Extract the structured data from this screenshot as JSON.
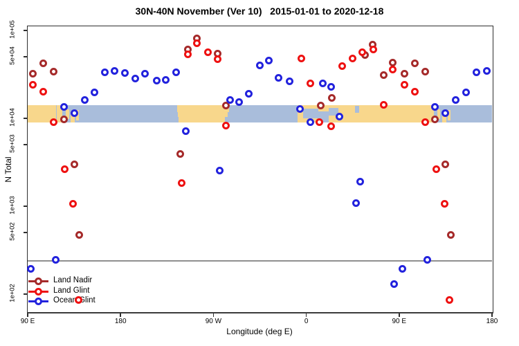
{
  "title": "30N-40N November (Ver 10)   2015-01-01 to 2020-12-18",
  "legend": {
    "items": [
      {
        "label": "Land Nadir",
        "series": "land_nadir"
      },
      {
        "label": "Land Glint",
        "series": "land_glint"
      },
      {
        "label": "Ocean Glint",
        "series": "ocean_glint"
      }
    ]
  },
  "chart_data": {
    "type": "scatter",
    "title": "30N-40N November (Ver 10)   2015-01-01 to 2020-12-18",
    "xlabel": "Longitude (deg E)",
    "ylabel": "N Total",
    "x_axis": {
      "min": 90,
      "max": 540,
      "note": "longitude wraps eastward from 90E: 90E to 180 to 90W to 0 to 90E to 180; data from 90E-180 repeated at both ends",
      "ticks": [
        {
          "lon": 90,
          "label": "90 E"
        },
        {
          "lon": 180,
          "label": "180"
        },
        {
          "lon": 270,
          "label": "90 W"
        },
        {
          "lon": 360,
          "label": "0"
        },
        {
          "lon": 450,
          "label": "90 E"
        },
        {
          "lon": 540,
          "label": "180"
        }
      ]
    },
    "y_axis": {
      "scale": "log",
      "min": 60,
      "max": 112000,
      "ticks": [
        {
          "value": 100000,
          "label": "1e+05"
        },
        {
          "value": 50000,
          "label": "5e+04"
        },
        {
          "value": 10000,
          "label": "1e+04"
        },
        {
          "value": 5000,
          "label": "5e+03"
        },
        {
          "value": 1000,
          "label": "1e+03"
        },
        {
          "value": 500,
          "label": "5e+02"
        },
        {
          "value": 100,
          "label": "1e+02"
        }
      ]
    },
    "threshold_line": {
      "value": 244,
      "color": "#8f8f8f"
    },
    "map_band": {
      "description": "world map strip for 30N-40N: tan=land, blue=ocean",
      "land_color": "#F8D78C",
      "ocean_color": "#A9BDDB",
      "value_top": 14100,
      "value_bottom": 9000,
      "land_segments": [
        {
          "from": 90,
          "to": 117.5,
          "top": 0,
          "bottom": 1
        },
        {
          "from": 118.5,
          "to": 123.5,
          "top": 0,
          "bottom": 1
        },
        {
          "from": 127,
          "to": 130,
          "top": 0.25,
          "bottom": 0.8
        },
        {
          "from": 131.5,
          "to": 135.5,
          "top": 0.35,
          "bottom": 1
        },
        {
          "from": 137,
          "to": 139.5,
          "top": 0.3,
          "bottom": 0.9
        },
        {
          "from": 235,
          "to": 285,
          "top": 0,
          "bottom": 0.4
        },
        {
          "from": 235.5,
          "to": 284,
          "top": 0.4,
          "bottom": 0.7
        },
        {
          "from": 236.5,
          "to": 281,
          "top": 0.7,
          "bottom": 1
        },
        {
          "from": 351.5,
          "to": 478,
          "top": 0,
          "bottom": 1
        },
        {
          "from": 478.5,
          "to": 484,
          "top": 0,
          "bottom": 1
        },
        {
          "from": 487,
          "to": 490,
          "top": 0.25,
          "bottom": 0.8
        },
        {
          "from": 491.5,
          "to": 495.5,
          "top": 0.35,
          "bottom": 1
        },
        {
          "from": 497,
          "to": 499.5,
          "top": 0.3,
          "bottom": 0.9
        }
      ],
      "ocean_patches": [
        {
          "from": 357,
          "to": 372,
          "top": 0.2,
          "bottom": 0.75
        },
        {
          "from": 372,
          "to": 382,
          "top": 0.35,
          "bottom": 1
        },
        {
          "from": 382,
          "to": 391,
          "top": 0.15,
          "bottom": 0.6
        },
        {
          "from": 407,
          "to": 411,
          "top": 0.05,
          "bottom": 0.45
        }
      ]
    },
    "series": [
      {
        "name": "Land Nadir",
        "key": "land_nadir",
        "color": "#A52A2A",
        "points": [
          [
            95,
            32100
          ],
          [
            105,
            42100
          ],
          [
            115,
            34100
          ],
          [
            125,
            9770
          ],
          [
            135,
            3010
          ],
          [
            140,
            475
          ],
          [
            238,
            3920
          ],
          [
            245,
            60500
          ],
          [
            254,
            81800
          ],
          [
            274,
            54700
          ],
          [
            282,
            14000
          ],
          [
            374,
            14000
          ],
          [
            385,
            17000
          ],
          [
            417,
            53000
          ],
          [
            424,
            69200
          ],
          [
            435,
            31100
          ],
          [
            444,
            43400
          ],
          [
            455,
            32100
          ],
          [
            465,
            42100
          ],
          [
            475,
            34100
          ],
          [
            485,
            9770
          ],
          [
            495,
            3010
          ],
          [
            500,
            475
          ]
        ]
      },
      {
        "name": "Land Glint",
        "key": "land_glint",
        "color": "#EE1111",
        "points": [
          [
            95,
            24200
          ],
          [
            105,
            20100
          ],
          [
            115,
            9020
          ],
          [
            126,
            2660
          ],
          [
            134,
            1070
          ],
          [
            139,
            85
          ],
          [
            239,
            1850
          ],
          [
            245,
            53700
          ],
          [
            254,
            71300
          ],
          [
            265,
            57000
          ],
          [
            274,
            47500
          ],
          [
            282,
            8240
          ],
          [
            355,
            48200
          ],
          [
            364,
            24800
          ],
          [
            373,
            9020
          ],
          [
            384,
            8100
          ],
          [
            395,
            39200
          ],
          [
            405,
            48200
          ],
          [
            414,
            56000
          ],
          [
            425,
            60500
          ],
          [
            435,
            14200
          ],
          [
            444,
            35700
          ],
          [
            455,
            24200
          ],
          [
            465,
            20100
          ],
          [
            475,
            9020
          ],
          [
            486,
            2660
          ],
          [
            494,
            1070
          ],
          [
            499,
            85
          ]
        ]
      },
      {
        "name": "Ocean Glint",
        "key": "ocean_glint",
        "color": "#2222DD",
        "points": [
          [
            93,
            195
          ],
          [
            117,
            244
          ],
          [
            125,
            13400
          ],
          [
            135,
            11500
          ],
          [
            145,
            16300
          ],
          [
            155,
            19800
          ],
          [
            165,
            33100
          ],
          [
            174,
            34800
          ],
          [
            184,
            32700
          ],
          [
            194,
            28400
          ],
          [
            204,
            32100
          ],
          [
            215,
            27100
          ],
          [
            224,
            27600
          ],
          [
            234,
            33100
          ],
          [
            243,
            7210
          ],
          [
            276,
            2540
          ],
          [
            286,
            16200
          ],
          [
            295,
            15400
          ],
          [
            304,
            18900
          ],
          [
            315,
            40200
          ],
          [
            324,
            45600
          ],
          [
            333,
            29000
          ],
          [
            344,
            26300
          ],
          [
            354,
            12700
          ],
          [
            364,
            9020
          ],
          [
            376,
            24800
          ],
          [
            384,
            23000
          ],
          [
            392,
            10500
          ],
          [
            408,
            1090
          ],
          [
            412,
            1900
          ],
          [
            445,
            131
          ],
          [
            453,
            195
          ],
          [
            477,
            244
          ],
          [
            485,
            13400
          ],
          [
            495,
            11500
          ],
          [
            505,
            16300
          ],
          [
            515,
            19800
          ],
          [
            525,
            33100
          ],
          [
            535,
            34800
          ]
        ]
      }
    ]
  }
}
